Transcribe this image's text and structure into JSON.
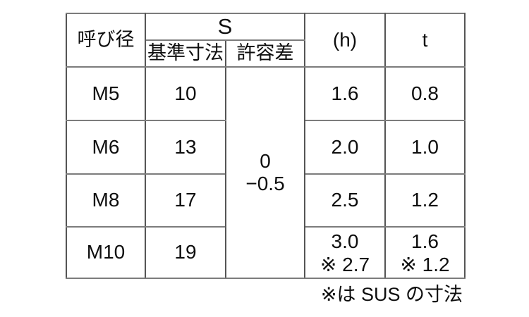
{
  "table": {
    "header": {
      "nominal": "呼び径",
      "s": "S",
      "s_basic": "基準寸法",
      "s_tol": "許容差",
      "h": "(h)",
      "t": "t"
    },
    "tolerance": {
      "line1": "0",
      "line2": "−0.5"
    },
    "rows": [
      {
        "name": "M5",
        "s_basic": "10",
        "h": "1.6",
        "t": "0.8"
      },
      {
        "name": "M6",
        "s_basic": "13",
        "h": "2.0",
        "t": "1.0"
      },
      {
        "name": "M8",
        "s_basic": "17",
        "h": "2.5",
        "t": "1.2"
      },
      {
        "name": "M10",
        "s_basic": "19",
        "h": "3.0",
        "h_note": "※ 2.7",
        "t": "1.6",
        "t_note": "※ 1.2"
      }
    ],
    "footnote": "※は SUS の寸法"
  },
  "colors": {
    "background": "#ffffff",
    "grid_vertical": "#555555",
    "grid_horizontal": "#7c7c7c",
    "text": "#0e0e0e"
  },
  "chart_data": {
    "type": "table",
    "title": "",
    "columns": [
      "呼び径",
      "S 基準寸法",
      "S 許容差",
      "(h)",
      "t"
    ],
    "rows": [
      [
        "M5",
        "10",
        "0 / −0.5",
        "1.6",
        "0.8"
      ],
      [
        "M6",
        "13",
        "0 / −0.5",
        "2.0",
        "1.0"
      ],
      [
        "M8",
        "17",
        "0 / −0.5",
        "2.5",
        "1.2"
      ],
      [
        "M10",
        "19",
        "0 / −0.5",
        "3.0 ※2.7",
        "1.6 ※1.2"
      ]
    ],
    "merged_cells": [
      {
        "column": "S 許容差",
        "rows": "M5–M10",
        "value": "0 / −0.5"
      }
    ],
    "footnote": "※は SUS の寸法"
  }
}
